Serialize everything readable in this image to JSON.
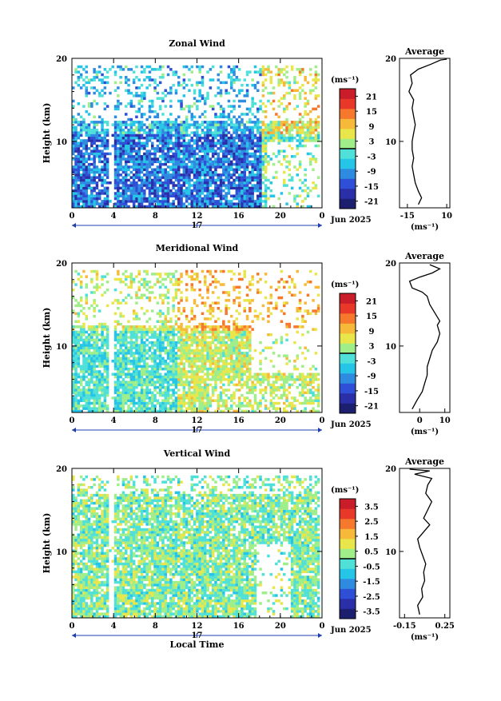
{
  "chart_data": [
    {
      "type": "heatmap",
      "title": "Zonal Wind",
      "ylabel": "Height (km)",
      "y_ticks": [
        "20",
        "10"
      ],
      "x_ticks": [
        "0",
        "4",
        "8",
        "12",
        "16",
        "20",
        "0"
      ],
      "date_day": "17",
      "date_month": "Jun 2025",
      "xlim": [
        0,
        24
      ],
      "ylim": [
        2,
        20
      ],
      "colorbar": {
        "unit": "(ms⁻¹)",
        "labels": [
          "21",
          "15",
          "9",
          "3",
          "-3",
          "-9",
          "-15",
          "-21"
        ],
        "range": [
          -24,
          24
        ]
      },
      "average": {
        "title": "Average",
        "xlabel": "(ms⁻¹)",
        "x_ticks": [
          "-15",
          "10"
        ],
        "y_ticks": [
          "20",
          "10"
        ],
        "xlim": [
          -20,
          12
        ],
        "profile": [
          [
            -8,
            2.4
          ],
          [
            -6,
            3.2
          ],
          [
            -8,
            4
          ],
          [
            -10,
            5
          ],
          [
            -11,
            6
          ],
          [
            -12,
            7
          ],
          [
            -11,
            8
          ],
          [
            -12,
            9
          ],
          [
            -12,
            10
          ],
          [
            -11,
            11
          ],
          [
            -10,
            12
          ],
          [
            -11,
            13
          ],
          [
            -12,
            14
          ],
          [
            -11,
            15
          ],
          [
            -14,
            16
          ],
          [
            -12,
            17
          ],
          [
            -13,
            18
          ],
          [
            -8,
            18.7
          ],
          [
            0,
            19.3
          ],
          [
            6,
            19.8
          ],
          [
            10,
            19.9
          ]
        ]
      }
    },
    {
      "type": "heatmap",
      "title": "Meridional Wind",
      "ylabel": "Height (km)",
      "y_ticks": [
        "20",
        "10"
      ],
      "x_ticks": [
        "0",
        "4",
        "8",
        "12",
        "16",
        "20",
        "0"
      ],
      "date_day": "17",
      "date_month": "Jun 2025",
      "xlim": [
        0,
        24
      ],
      "ylim": [
        2,
        20
      ],
      "colorbar": {
        "unit": "(ms⁻¹)",
        "labels": [
          "21",
          "15",
          "9",
          "3",
          "-3",
          "-9",
          "-15",
          "-21"
        ],
        "range": [
          -24,
          24
        ]
      },
      "average": {
        "title": "Average",
        "xlabel": "(ms⁻¹)",
        "x_ticks": [
          "0",
          "10"
        ],
        "y_ticks": [
          "20",
          "10"
        ],
        "xlim": [
          -8,
          12
        ],
        "profile": [
          [
            -3,
            2.4
          ],
          [
            -1,
            3.5
          ],
          [
            1,
            4.5
          ],
          [
            2,
            5.5
          ],
          [
            3,
            6.5
          ],
          [
            3,
            7.5
          ],
          [
            4,
            8.5
          ],
          [
            5,
            9.5
          ],
          [
            7,
            10.5
          ],
          [
            8,
            11.5
          ],
          [
            7,
            12.5
          ],
          [
            8,
            13
          ],
          [
            6,
            14
          ],
          [
            4,
            15
          ],
          [
            3,
            16
          ],
          [
            1,
            16.5
          ],
          [
            -3,
            17
          ],
          [
            -4,
            17.8
          ],
          [
            0,
            18.3
          ],
          [
            5,
            18.8
          ],
          [
            8,
            19.3
          ],
          [
            4,
            19.8
          ]
        ]
      }
    },
    {
      "type": "heatmap",
      "title": "Vertical Wind",
      "ylabel": "Height (km)",
      "xlabel": "Local Time",
      "y_ticks": [
        "20",
        "10"
      ],
      "x_ticks": [
        "0",
        "4",
        "8",
        "12",
        "16",
        "20",
        "0"
      ],
      "date_day": "17",
      "date_month": "Jun 2025",
      "xlim": [
        0,
        24
      ],
      "ylim": [
        2,
        20
      ],
      "colorbar": {
        "unit": "(ms⁻¹)",
        "labels": [
          "3.5",
          "2.5",
          "1.5",
          "0.5",
          "-0.5",
          "-1.5",
          "-2.5",
          "-3.5"
        ],
        "range": [
          -4,
          4
        ]
      },
      "average": {
        "title": "Average",
        "xlabel": "(ms⁻¹)",
        "x_ticks": [
          "-0.15",
          "0.25"
        ],
        "y_ticks": [
          "20",
          "10"
        ],
        "xlim": [
          -0.2,
          0.3
        ],
        "profile": [
          [
            0,
            2.4
          ],
          [
            -0.02,
            3.5
          ],
          [
            0.03,
            4.5
          ],
          [
            0.02,
            5.5
          ],
          [
            0.05,
            6.5
          ],
          [
            0.04,
            7.5
          ],
          [
            0.06,
            8.5
          ],
          [
            0.03,
            9.5
          ],
          [
            0.0,
            10.5
          ],
          [
            -0.02,
            11.5
          ],
          [
            0.05,
            12.5
          ],
          [
            0.1,
            13.2
          ],
          [
            0.04,
            14
          ],
          [
            0.08,
            15
          ],
          [
            0.12,
            16
          ],
          [
            0.06,
            17
          ],
          [
            0.08,
            18
          ],
          [
            0.12,
            18.8
          ],
          [
            -0.05,
            19.3
          ],
          [
            0.1,
            19.7
          ],
          [
            -0.1,
            19.9
          ]
        ]
      }
    }
  ],
  "colorscale": [
    "#1c1f6e",
    "#2a2fa8",
    "#2e4fd6",
    "#2f8be0",
    "#26c4e6",
    "#4fe0d8",
    "#9fee8a",
    "#e8e64a",
    "#f7b93a",
    "#f6782c",
    "#e8382a",
    "#c91e2a"
  ]
}
